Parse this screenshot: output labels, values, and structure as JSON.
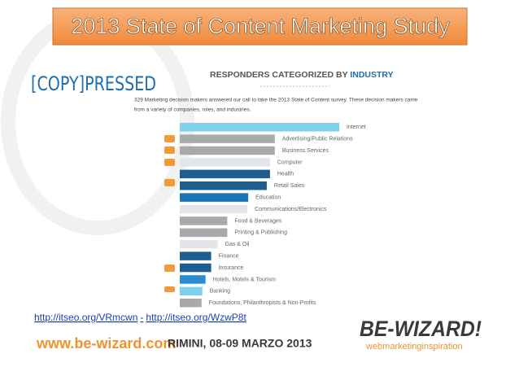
{
  "slide": {
    "title": "2013 State of Content Marketing Study",
    "logo": "[COPY]PRESSED",
    "links": [
      "http://itseo.org/VRmcwn",
      "-",
      "http://itseo.org/WzwP8t"
    ],
    "footer_site": "www.be-wizard.com",
    "footer_event": "RIMINI, 08-09 MARZO 2013",
    "brand": "BE-WIZARD!",
    "brand_tagline": "webmarketinginspiration"
  },
  "chart_data": {
    "type": "hbar",
    "title": [
      "RESPONDERS CATEGORIZED BY ",
      "INDUSTRY"
    ],
    "subtitle": [
      "329 Marketing decision makers answered our call to take the 2013 State of Content survey. These decision makers came",
      "from a variety of companies, roles, and industries."
    ],
    "categories": [
      "Internet",
      "Advertising/Public Relations",
      "Business Services",
      "Computer",
      "Health",
      "Retail Sales",
      "Education",
      "Communications/Electronics",
      "Food & Beverages",
      "Printing & Publishing",
      "Gas & Oil",
      "Finance",
      "Insurance",
      "Hotels, Motels & Tourism",
      "Banking",
      "Foundations, Philanthropists & Non-Profits"
    ],
    "values": [
      198,
      118,
      118,
      112,
      112,
      108,
      85,
      84,
      59,
      59,
      47,
      39,
      39,
      32,
      28,
      27
    ],
    "colors": [
      "#7fd0ef",
      "#a9a9a9",
      "#a9a9a9",
      "#e2e6ea",
      "#1c5e92",
      "#1c5e92",
      "#1a75b8",
      "#e2e6ea",
      "#a9a9a9",
      "#a9a9a9",
      "#e2e6ea",
      "#1c5e92",
      "#1c5e92",
      "#2b8bd0",
      "#7fd0ef",
      "#a9a9a9"
    ],
    "xlim": [
      0,
      200
    ]
  }
}
